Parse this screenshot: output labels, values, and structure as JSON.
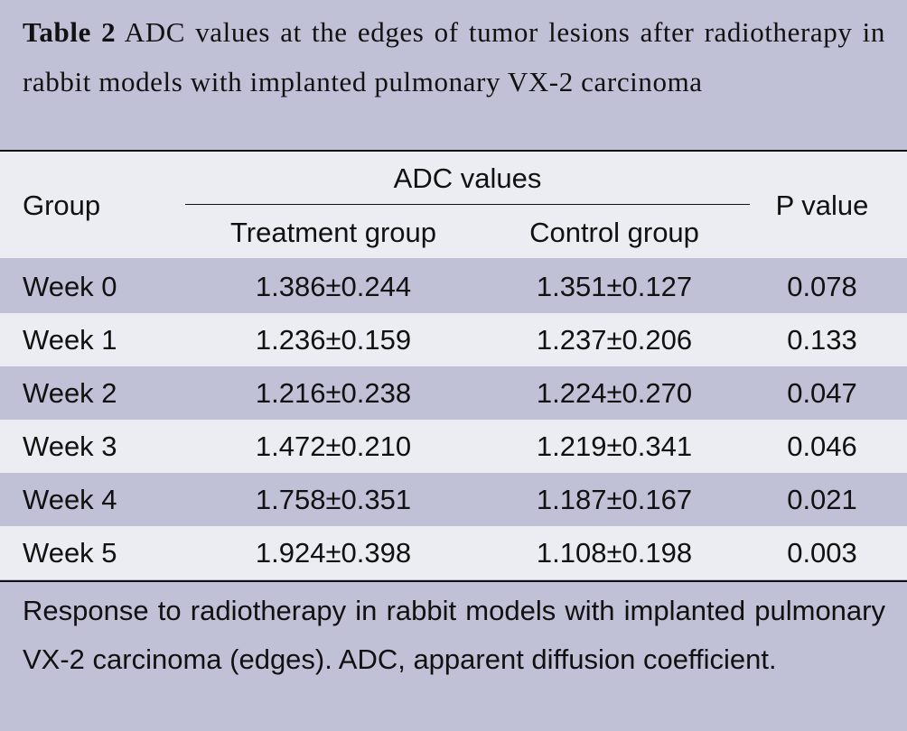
{
  "caption": {
    "label": "Table 2",
    "text": "ADC values at the edges of tumor lesions after radiotherapy in rabbit models with implanted pulmonary VX-2 carcinoma"
  },
  "table": {
    "headers": {
      "group": "Group",
      "adc": "ADC values",
      "treatment": "Treatment group",
      "control": "Control group",
      "p": "P value"
    },
    "rows": [
      {
        "group": "Week 0",
        "treatment": "1.386±0.244",
        "control": "1.351±0.127",
        "p": "0.078"
      },
      {
        "group": "Week 1",
        "treatment": "1.236±0.159",
        "control": "1.237±0.206",
        "p": "0.133"
      },
      {
        "group": "Week 2",
        "treatment": "1.216±0.238",
        "control": "1.224±0.270",
        "p": "0.047"
      },
      {
        "group": "Week 3",
        "treatment": "1.472±0.210",
        "control": "1.219±0.341",
        "p": "0.046"
      },
      {
        "group": "Week 4",
        "treatment": "1.758±0.351",
        "control": "1.187±0.167",
        "p": "0.021"
      },
      {
        "group": "Week 5",
        "treatment": "1.924±0.398",
        "control": "1.108±0.198",
        "p": "0.003"
      }
    ]
  },
  "footnote": "Response to radiotherapy in rabbit models with implanted pulmonary VX-2 carcinoma (edges). ADC, apparent diffusion coefficient.",
  "colors": {
    "shade": "#c0c0d6",
    "light": "#ececf3",
    "text": "#111111"
  }
}
